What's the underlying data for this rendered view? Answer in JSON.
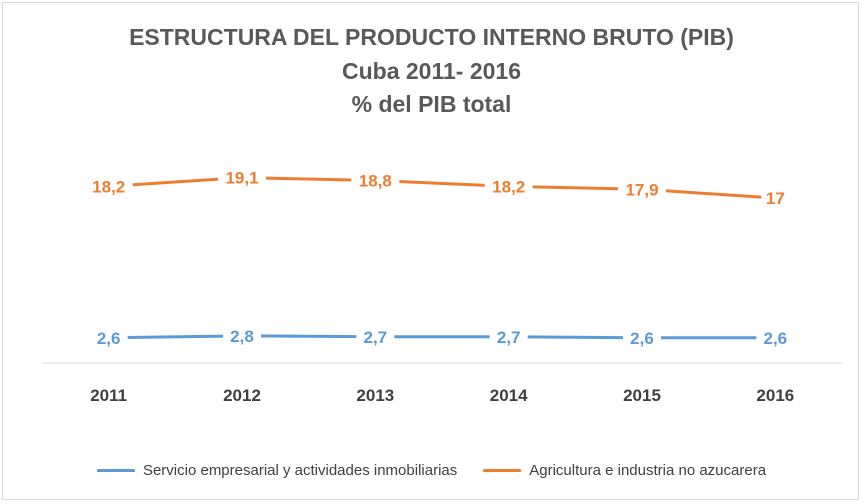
{
  "chart_data": {
    "type": "line",
    "title": "ESTRUCTURA DEL PRODUCTO INTERNO BRUTO (PIB)",
    "subtitle": "Cuba 2011- 2016",
    "subtitle2": "% del PIB total",
    "xlabel": "",
    "ylabel": "",
    "categories": [
      "2011",
      "2012",
      "2013",
      "2014",
      "2015",
      "2016"
    ],
    "series": [
      {
        "name": "Servicio empresarial y actividades inmobiliarias",
        "values": [
          2.6,
          2.8,
          2.7,
          2.7,
          2.6,
          2.6
        ],
        "labels": [
          "2,6",
          "2,8",
          "2,7",
          "2,7",
          "2,6",
          "2,6"
        ],
        "color": "#5b9bd5"
      },
      {
        "name": "Agricultura e industria no azucarera",
        "values": [
          18.2,
          19.1,
          18.8,
          18.2,
          17.9,
          17
        ],
        "labels": [
          "18,2",
          "19,1",
          "18,8",
          "18,2",
          "17,9",
          "17"
        ],
        "color": "#ed7d31"
      }
    ],
    "ylim": [
      0,
      23.7
    ],
    "grid": false,
    "legend": "bottom"
  }
}
